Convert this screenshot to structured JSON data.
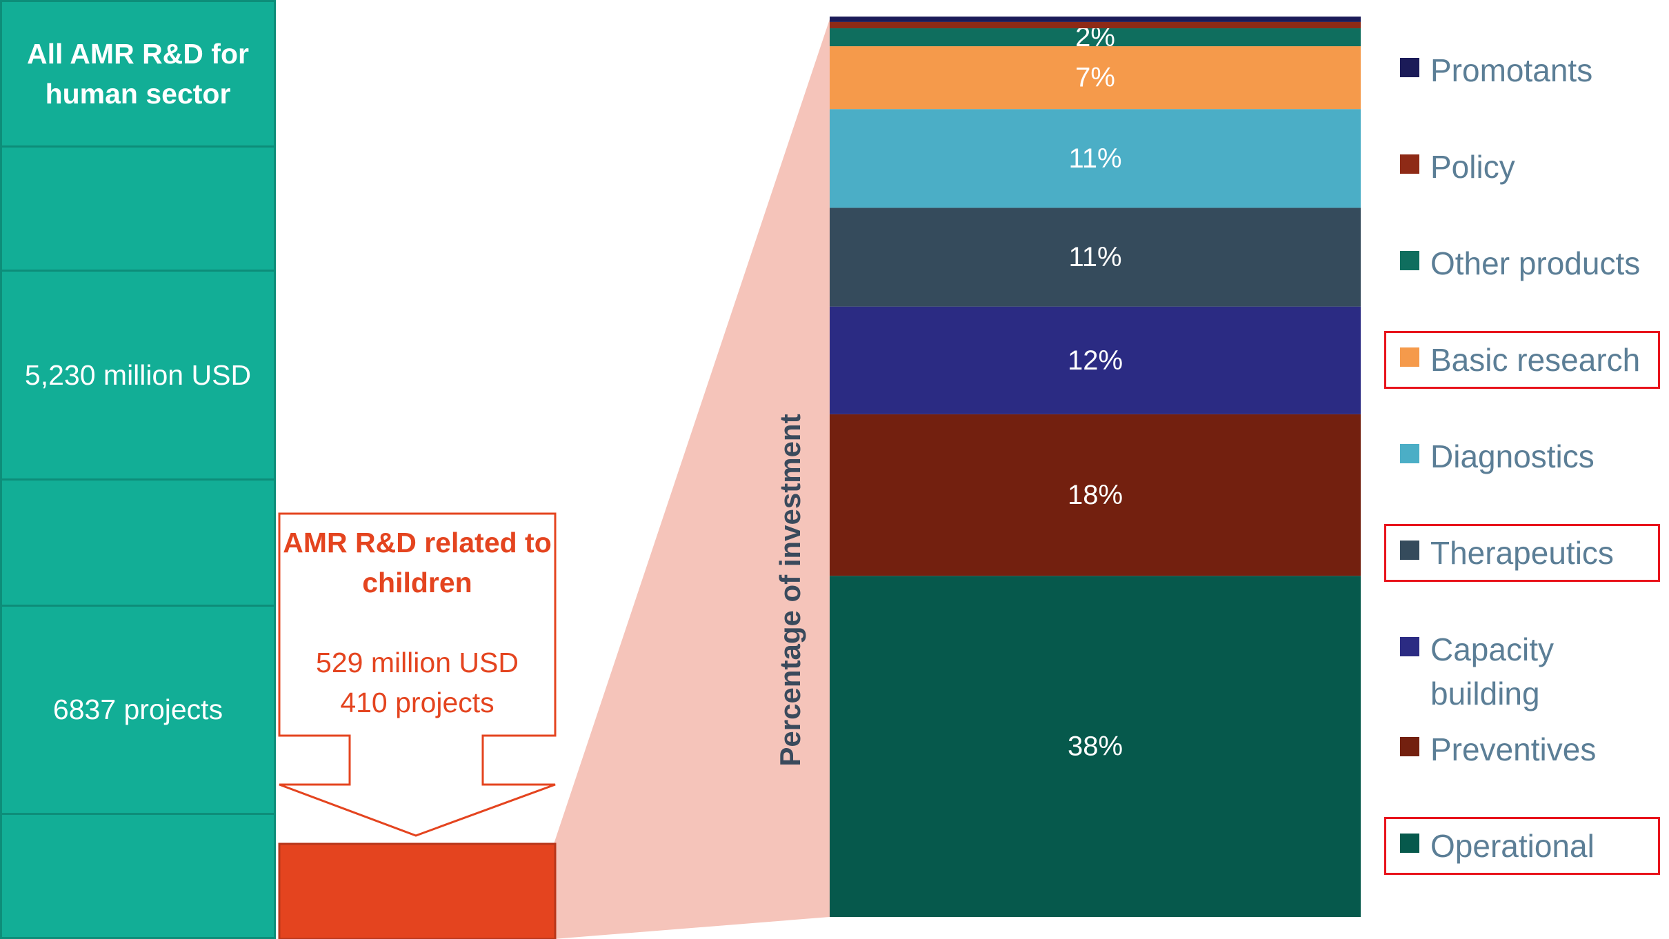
{
  "left_panel": {
    "title": "All AMR R&D for human sector",
    "amount": "5,230 million USD",
    "projects": "6837 projects"
  },
  "callout": {
    "title": "AMR R&D related to children",
    "amount": "529 million USD",
    "projects": "410 projects"
  },
  "colors": {
    "left_panel": "#12ae96",
    "left_border": "#0d8d79",
    "children_bar": "#e4441f",
    "zoom_fill": "#f5c4ba",
    "legend_text": "#5b7e96",
    "highlight_box": "#e8141c"
  },
  "chart_data": {
    "type": "bar",
    "stacked": true,
    "ylabel": "Percentage of investment",
    "unit": "%",
    "ylim": [
      0,
      100
    ],
    "series": [
      {
        "name": "Operational",
        "value": 38,
        "label": "38%",
        "color": "#06594c"
      },
      {
        "name": "Preventives",
        "value": 18,
        "label": "18%",
        "color": "#73200f"
      },
      {
        "name": "Capacity building",
        "value": 12,
        "label": "12%",
        "color": "#2b2b83"
      },
      {
        "name": "Therapeutics",
        "value": 11,
        "label": "11%",
        "color": "#354b5c"
      },
      {
        "name": "Diagnostics",
        "value": 11,
        "label": "11%",
        "color": "#4baec6"
      },
      {
        "name": "Basic research",
        "value": 7,
        "label": "7%",
        "color": "#f59a4b"
      },
      {
        "name": "Other products",
        "value": 2,
        "label": "2%",
        "color": "#0f6e5e"
      },
      {
        "name": "Policy",
        "value": 0.7,
        "label": "",
        "color": "#8e2a16"
      },
      {
        "name": "Promotants",
        "value": 0.3,
        "label": "",
        "color": "#1b1b58"
      }
    ],
    "legend": {
      "placement": "right",
      "items": [
        {
          "name": "Promotants",
          "color": "#1b1b58",
          "highlighted": false
        },
        {
          "name": "Policy",
          "color": "#8e2a16",
          "highlighted": false
        },
        {
          "name": "Other products",
          "color": "#0f6e5e",
          "highlighted": false
        },
        {
          "name": "Basic research",
          "color": "#f59a4b",
          "highlighted": true
        },
        {
          "name": "Diagnostics",
          "color": "#4baec6",
          "highlighted": false
        },
        {
          "name": "Therapeutics",
          "color": "#354b5c",
          "highlighted": true
        },
        {
          "name": "Capacity building",
          "color": "#2b2b83",
          "highlighted": false
        },
        {
          "name": "Preventives",
          "color": "#73200f",
          "highlighted": false
        },
        {
          "name": "Operational",
          "color": "#06594c",
          "highlighted": true
        }
      ]
    }
  }
}
